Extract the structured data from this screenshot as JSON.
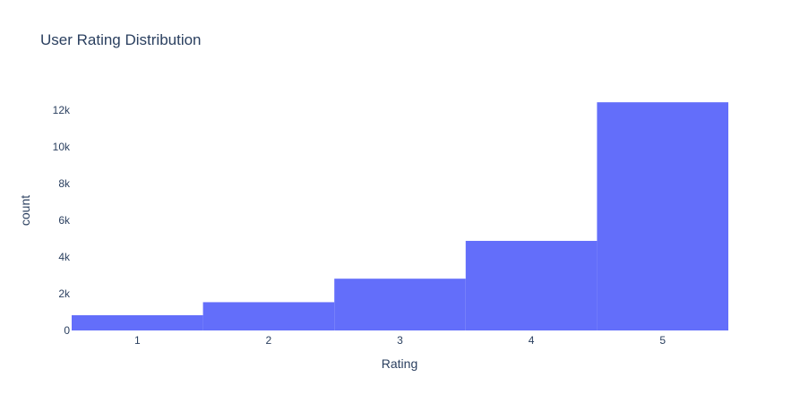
{
  "chart_data": {
    "type": "bar",
    "title": "User Rating Distribution",
    "xlabel": "Rating",
    "ylabel": "count",
    "categories": [
      "1",
      "2",
      "3",
      "4",
      "5"
    ],
    "values": [
      830,
      1540,
      2820,
      4880,
      12430
    ],
    "ylim": [
      0,
      13000
    ],
    "yticks": [
      {
        "value": 0,
        "label": "0"
      },
      {
        "value": 2000,
        "label": "2k"
      },
      {
        "value": 4000,
        "label": "4k"
      },
      {
        "value": 6000,
        "label": "6k"
      },
      {
        "value": 8000,
        "label": "8k"
      },
      {
        "value": 10000,
        "label": "10k"
      },
      {
        "value": 12000,
        "label": "12k"
      }
    ],
    "bar_color": "#636efa",
    "grid": false,
    "legend": "none"
  }
}
